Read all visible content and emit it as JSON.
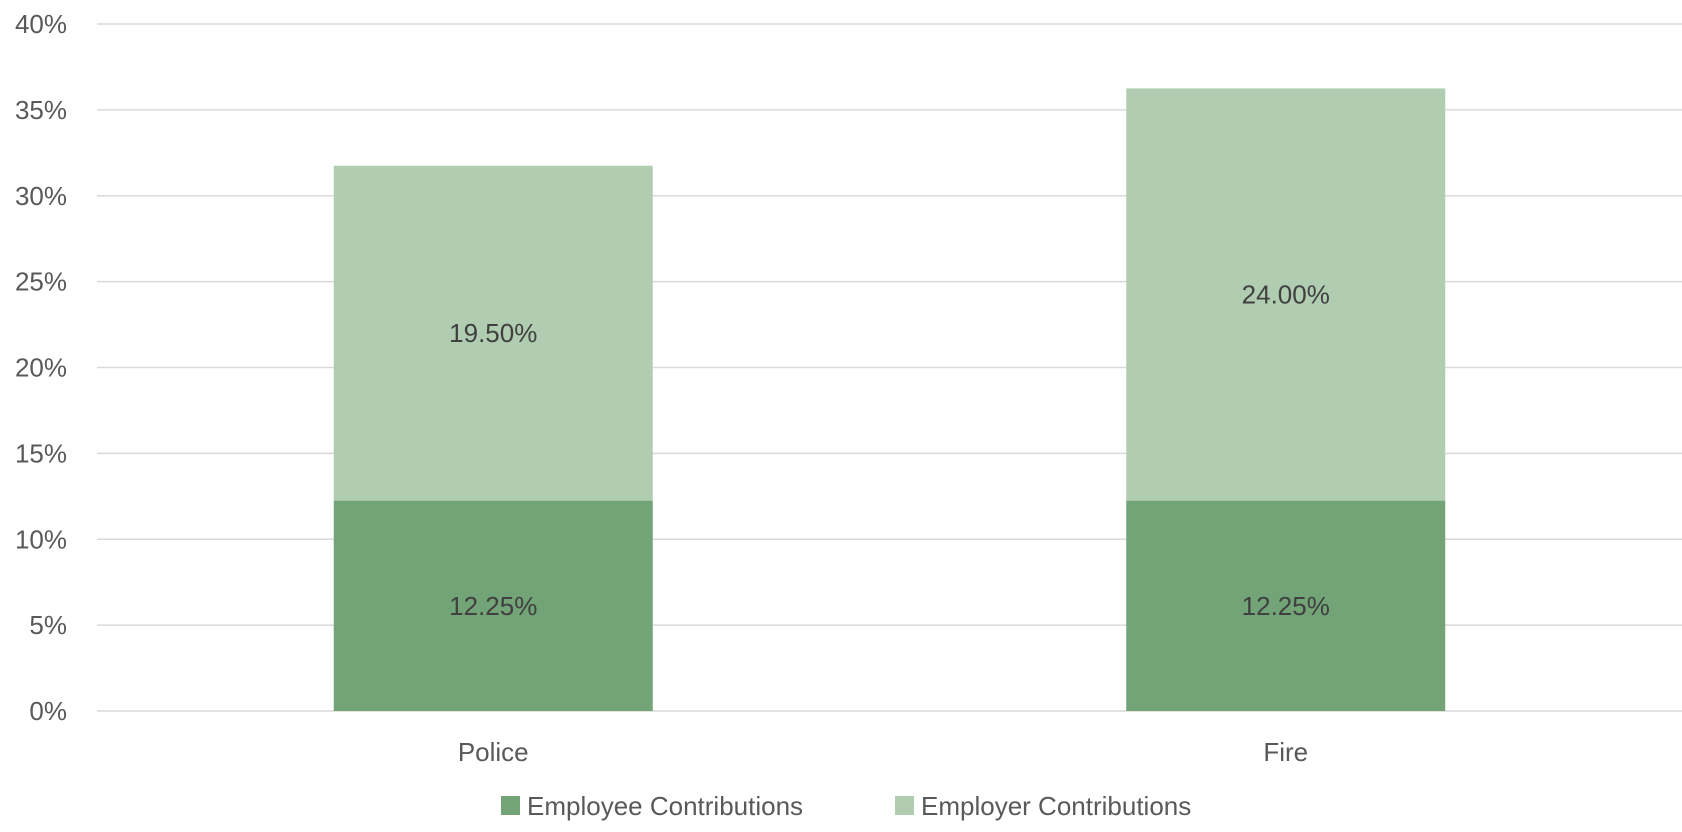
{
  "chart_data": {
    "type": "bar",
    "stacked": true,
    "categories": [
      "Police",
      "Fire"
    ],
    "series": [
      {
        "name": "Employee Contributions",
        "values": [
          12.25,
          12.25
        ],
        "labels": [
          "12.25%",
          "12.25%"
        ],
        "color": "#72a477"
      },
      {
        "name": "Employer Contributions",
        "values": [
          19.5,
          24.0
        ],
        "labels": [
          "19.50%",
          "24.00%"
        ],
        "color": "#b0cdb1"
      }
    ],
    "ylim": [
      0,
      40
    ],
    "yticks": [
      0,
      5,
      10,
      15,
      20,
      25,
      30,
      35,
      40
    ],
    "ytick_labels": [
      "0%",
      "5%",
      "10%",
      "15%",
      "20%",
      "25%",
      "30%",
      "35%",
      "40%"
    ],
    "grid": true,
    "legend": "bottom-center",
    "title": "",
    "xlabel": "",
    "ylabel": ""
  }
}
